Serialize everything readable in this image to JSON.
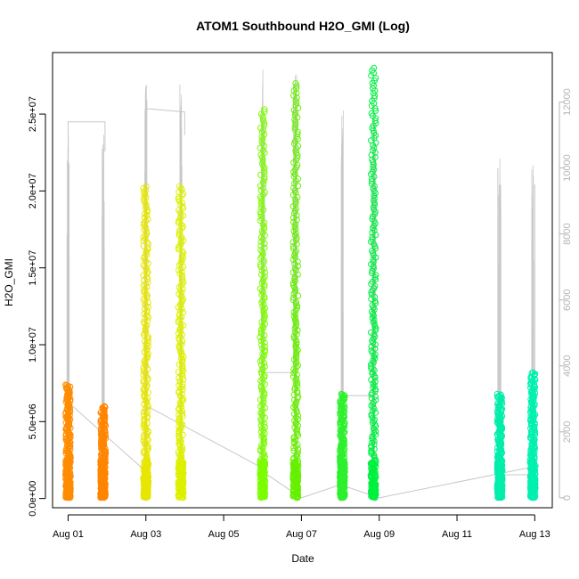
{
  "chart_data": {
    "type": "scatter",
    "title": "ATOM1 Southbound H2O_GMI (Log)",
    "xlabel": "Date",
    "ylabel": "H2O_GMI",
    "x_unit": "days",
    "x_ticks": [
      {
        "value": 1,
        "label": "Aug 01"
      },
      {
        "value": 3,
        "label": "Aug 03"
      },
      {
        "value": 5,
        "label": "Aug 05"
      },
      {
        "value": 7,
        "label": "Aug 07"
      },
      {
        "value": 9,
        "label": "Aug 09"
      },
      {
        "value": 11,
        "label": "Aug 11"
      },
      {
        "value": 13,
        "label": "Aug 13"
      }
    ],
    "xlim": [
      0.6,
      13.45
    ],
    "ylim": [
      -600000,
      29000000
    ],
    "y_ticks": [
      {
        "value": 0,
        "label": "0.0e+00"
      },
      {
        "value": 5000000,
        "label": "5.0e+06"
      },
      {
        "value": 10000000,
        "label": "1.0e+07"
      },
      {
        "value": 15000000,
        "label": "1.5e+07"
      },
      {
        "value": 20000000,
        "label": "2.0e+07"
      },
      {
        "value": 25000000,
        "label": "2.5e+07"
      }
    ],
    "y2_label": "",
    "y2lim": [
      -300,
      13500
    ],
    "y2_ticks": [
      0,
      2000,
      4000,
      6000,
      8000,
      10000,
      12000
    ],
    "marker": "open-circle",
    "series": [
      {
        "x": 1.0,
        "ymin": 50000,
        "ymax": 7400000,
        "color": "#FF8C00"
      },
      {
        "x": 1.9,
        "ymin": 50000,
        "ymax": 6000000,
        "color": "#FF8500"
      },
      {
        "x": 3.0,
        "ymin": 50000,
        "ymax": 20300000,
        "color": "#E6E600"
      },
      {
        "x": 3.9,
        "ymin": 50000,
        "ymax": 20300000,
        "color": "#DDF000"
      },
      {
        "x": 6.0,
        "ymin": 50000,
        "ymax": 25300000,
        "color": "#7CFC00"
      },
      {
        "x": 6.85,
        "ymin": 50000,
        "ymax": 27000000,
        "color": "#66F000"
      },
      {
        "x": 8.05,
        "ymin": 50000,
        "ymax": 6800000,
        "color": "#2EF02E"
      },
      {
        "x": 8.85,
        "ymin": 50000,
        "ymax": 28000000,
        "color": "#00F040"
      },
      {
        "x": 12.1,
        "ymin": 50000,
        "ymax": 6800000,
        "color": "#00EEAA"
      },
      {
        "x": 12.95,
        "ymin": 50000,
        "ymax": 8200000,
        "color": "#00F0B0"
      }
    ],
    "secondary_line": {
      "color": "#c8c8c8",
      "segments": [
        [
          [
            1.0,
            7400
          ],
          [
            1.0,
            11400
          ],
          [
            1.95,
            11400
          ],
          [
            1.95,
            10500
          ]
        ],
        [
          [
            3.0,
            12000
          ],
          [
            3.0,
            11800
          ],
          [
            4.0,
            11700
          ],
          [
            4.0,
            11000
          ]
        ],
        [
          [
            6.05,
            11500
          ],
          [
            6.05,
            3800
          ],
          [
            6.8,
            3800
          ],
          [
            6.8,
            12500
          ]
        ],
        [
          [
            8.05,
            11200
          ],
          [
            8.05,
            3100
          ],
          [
            8.9,
            3100
          ],
          [
            8.9,
            10500
          ]
        ],
        [
          [
            12.05,
            10000
          ],
          [
            12.05,
            700
          ],
          [
            13.0,
            700
          ],
          [
            13.0,
            9500
          ]
        ]
      ],
      "lower_trend": [
        [
          1.0,
          2900
        ],
        [
          3.0,
          800
        ],
        [
          3.0,
          2800
        ],
        [
          6.0,
          900
        ],
        [
          6.0,
          800
        ],
        [
          7.0,
          0
        ],
        [
          8.0,
          400
        ],
        [
          9.0,
          0
        ],
        [
          13.0,
          950
        ]
      ]
    }
  }
}
